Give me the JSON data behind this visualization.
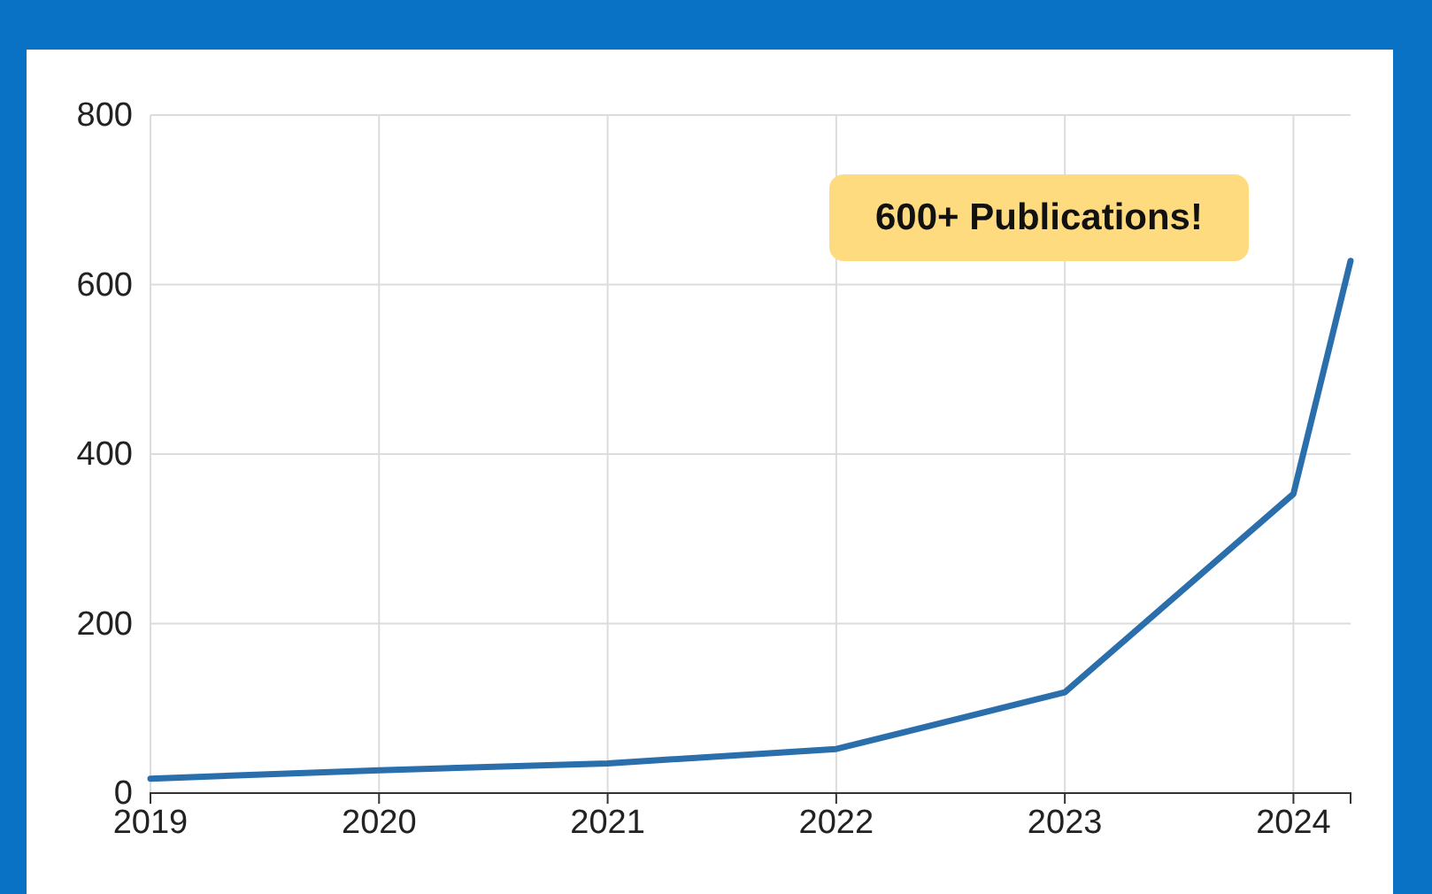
{
  "chart_data": {
    "type": "line",
    "x": [
      2019,
      2020,
      2021,
      2022,
      2023,
      2024,
      2024.25
    ],
    "series": [
      {
        "color": "#2a6fac",
        "values": [
          17,
          27,
          35,
          52,
          119,
          353,
          628
        ]
      }
    ],
    "xlim": [
      2019,
      2024.25
    ],
    "xticks": [
      2019,
      2020,
      2021,
      2022,
      2023,
      2024
    ],
    "ylim": [
      0,
      800
    ],
    "yticks": [
      0,
      200,
      400,
      600,
      800
    ],
    "grid": true,
    "line_style": "solid",
    "marker": "none",
    "annotations": [
      "600+ Publications!"
    ]
  }
}
